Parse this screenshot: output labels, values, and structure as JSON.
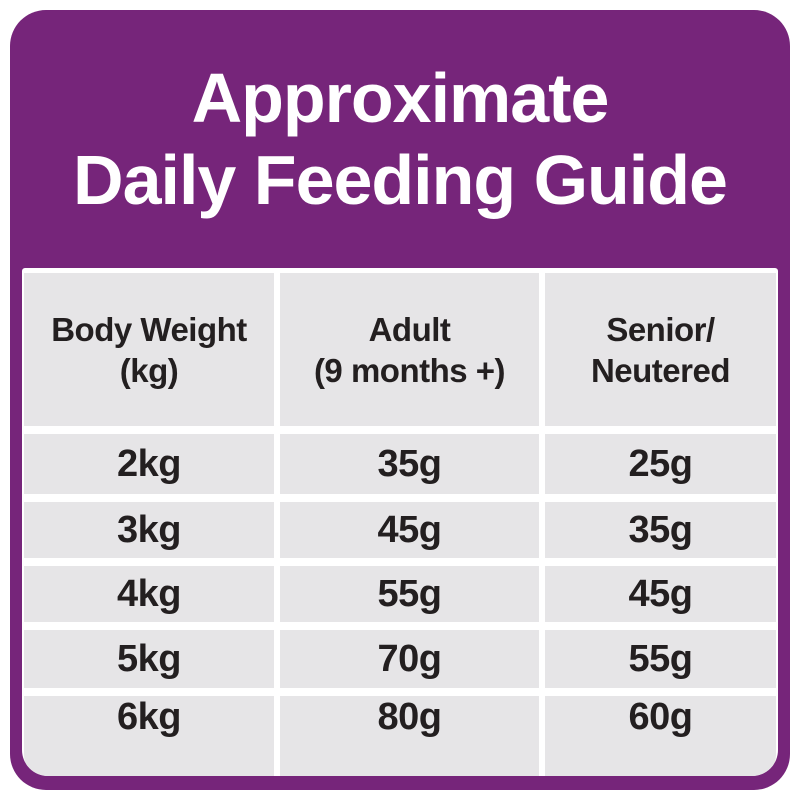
{
  "theme": {
    "purple": "#76257a",
    "cell_gray": "#e6e5e7",
    "text_dark": "#231f20",
    "gutter_white": "#ffffff",
    "title_white": "#ffffff"
  },
  "title": {
    "line1": "Approximate",
    "line2": "Daily Feeding Guide"
  },
  "table": {
    "headers": [
      {
        "line1": "Body Weight",
        "line2": "(kg)"
      },
      {
        "line1": "Adult",
        "line2": "(9 months +)"
      },
      {
        "line1": "Senior/",
        "line2": "Neutered"
      }
    ],
    "rows": [
      {
        "weight": "2kg",
        "adult": "35g",
        "senior": "25g"
      },
      {
        "weight": "3kg",
        "adult": "45g",
        "senior": "35g"
      },
      {
        "weight": "4kg",
        "adult": "55g",
        "senior": "45g"
      },
      {
        "weight": "5kg",
        "adult": "70g",
        "senior": "55g"
      },
      {
        "weight": "6kg",
        "adult": "80g",
        "senior": "60g"
      }
    ]
  },
  "chart_data": {
    "type": "table",
    "title": "Approximate Daily Feeding Guide",
    "columns": [
      "Body Weight (kg)",
      "Adult (9 months +)",
      "Senior/Neutered"
    ],
    "rows": [
      [
        "2kg",
        "35g",
        "25g"
      ],
      [
        "3kg",
        "45g",
        "35g"
      ],
      [
        "4kg",
        "55g",
        "45g"
      ],
      [
        "5kg",
        "70g",
        "55g"
      ],
      [
        "6kg",
        "80g",
        "60g"
      ]
    ],
    "units": {
      "body_weight": "kg",
      "portions": "g"
    },
    "layout": {
      "header_row": true,
      "gutters": "white",
      "frame_color": "#76257a"
    }
  }
}
